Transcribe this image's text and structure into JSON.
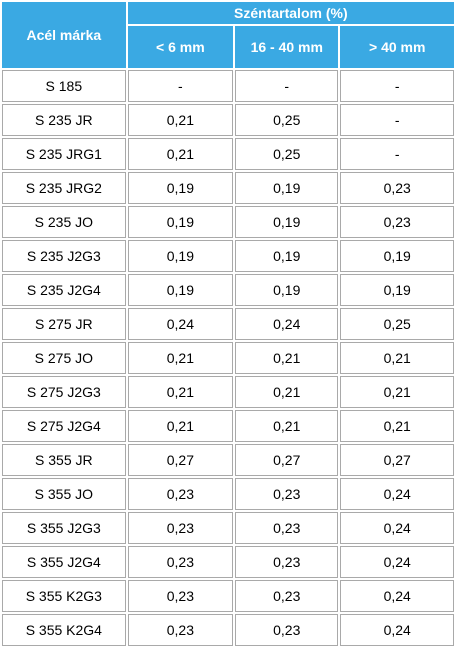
{
  "table": {
    "header": {
      "col0": "Acél márka",
      "group": "Széntartalom (%)",
      "subcols": [
        "< 6 mm",
        "16 - 40 mm",
        "> 40 mm"
      ]
    },
    "rows": [
      [
        "S 185",
        "-",
        "-",
        "-"
      ],
      [
        "S 235 JR",
        "0,21",
        "0,25",
        "-"
      ],
      [
        "S 235 JRG1",
        "0,21",
        "0,25",
        "-"
      ],
      [
        "S 235 JRG2",
        "0,19",
        "0,19",
        "0,23"
      ],
      [
        "S 235 JO",
        "0,19",
        "0,19",
        "0,23"
      ],
      [
        "S 235 J2G3",
        "0,19",
        "0,19",
        "0,19"
      ],
      [
        "S 235 J2G4",
        "0,19",
        "0,19",
        "0,19"
      ],
      [
        "S 275 JR",
        "0,24",
        "0,24",
        "0,25"
      ],
      [
        "S 275 JO",
        "0,21",
        "0,21",
        "0,21"
      ],
      [
        "S 275 J2G3",
        "0,21",
        "0,21",
        "0,21"
      ],
      [
        "S 275 J2G4",
        "0,21",
        "0,21",
        "0,21"
      ],
      [
        "S 355 JR",
        "0,27",
        "0,27",
        "0,27"
      ],
      [
        "S 355 JO",
        "0,23",
        "0,23",
        "0,24"
      ],
      [
        "S 355 J2G3",
        "0,23",
        "0,23",
        "0,24"
      ],
      [
        "S 355 J2G4",
        "0,23",
        "0,23",
        "0,24"
      ],
      [
        "S 355 K2G3",
        "0,23",
        "0,23",
        "0,24"
      ],
      [
        "S 355 K2G4",
        "0,23",
        "0,23",
        "0,24"
      ]
    ]
  }
}
